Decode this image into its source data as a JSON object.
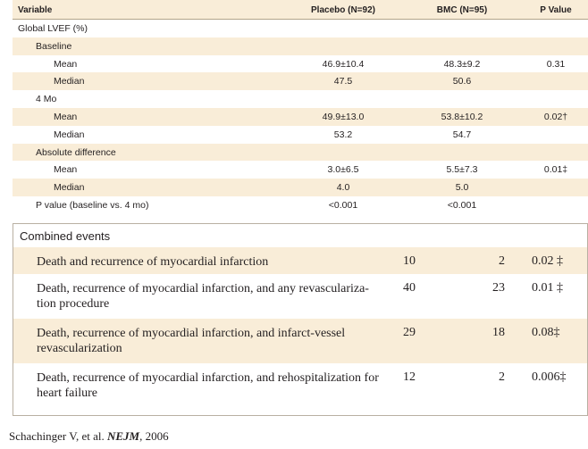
{
  "table1": {
    "headers": {
      "variable": "Variable",
      "placebo": "Placebo (N=92)",
      "bmc": "BMC (N=95)",
      "p": "P Value"
    },
    "rows": [
      {
        "label": "Global LVEF (%)",
        "placebo": "",
        "bmc": "",
        "p": ""
      },
      {
        "label": "Baseline",
        "placebo": "",
        "bmc": "",
        "p": ""
      },
      {
        "label": "Mean",
        "placebo": "46.9±10.4",
        "bmc": "48.3±9.2",
        "p": "0.31"
      },
      {
        "label": "Median",
        "placebo": "47.5",
        "bmc": "50.6",
        "p": ""
      },
      {
        "label": "4 Mo",
        "placebo": "",
        "bmc": "",
        "p": ""
      },
      {
        "label": "Mean",
        "placebo": "49.9±13.0",
        "bmc": "53.8±10.2",
        "p": "0.02†"
      },
      {
        "label": "Median",
        "placebo": "53.2",
        "bmc": "54.7",
        "p": ""
      },
      {
        "label": "Absolute difference",
        "placebo": "",
        "bmc": "",
        "p": ""
      },
      {
        "label": "Mean",
        "placebo": "3.0±6.5",
        "bmc": "5.5±7.3",
        "p": "0.01‡"
      },
      {
        "label": "Median",
        "placebo": "4.0",
        "bmc": "5.0",
        "p": ""
      },
      {
        "label": "P value (baseline vs. 4 mo)",
        "placebo": "<0.001",
        "bmc": "<0.001",
        "p": ""
      }
    ]
  },
  "table2": {
    "title": "Combined events",
    "rows": [
      {
        "event": "Death and recurrence of myocardial infarction",
        "placebo": "10",
        "bmc": "2",
        "p": "0.02 ‡"
      },
      {
        "event": "Death, recurrence of myocardial infarction, and any revasculariza-tion procedure",
        "placebo": "40",
        "bmc": "23",
        "p": "0.01 ‡"
      },
      {
        "event": "Death, recurrence of myocardial infarction, and infarct-vessel revascularization",
        "placebo": "29",
        "bmc": "18",
        "p": "0.08‡"
      },
      {
        "event": "Death, recurrence of myocardial infarction, and rehospitalization for heart failure",
        "placebo": "12",
        "bmc": "2",
        "p": "0.006‡"
      }
    ]
  },
  "citation": {
    "authors": "Schachinger V, et al.",
    "journal": "NEJM",
    "year": ", 2006"
  }
}
